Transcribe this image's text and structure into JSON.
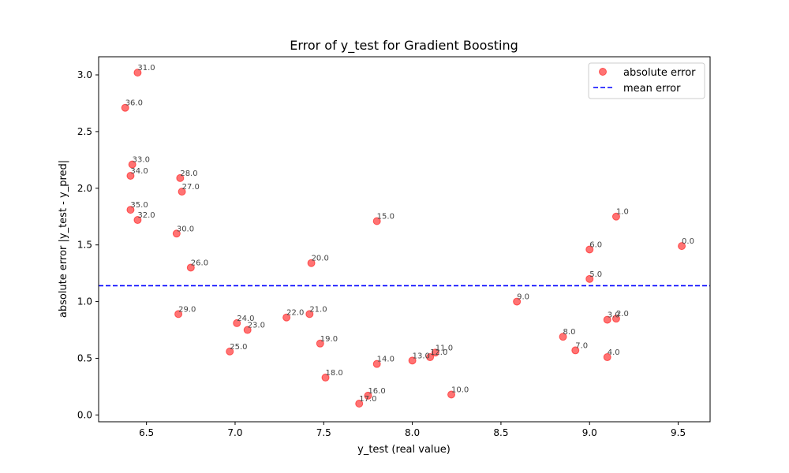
{
  "chart_data": {
    "type": "scatter",
    "title": "Error of y_test for Gradient Boosting",
    "xlabel": "y_test (real value)",
    "ylabel": "absolute error |y_test - y_pred|",
    "xlim": [
      6.23,
      9.68
    ],
    "ylim": [
      -0.06,
      3.16
    ],
    "xticks": [
      "6.5",
      "7.0",
      "7.5",
      "8.0",
      "8.5",
      "9.0",
      "9.5"
    ],
    "yticks": [
      "0.0",
      "0.5",
      "1.0",
      "1.5",
      "2.0",
      "2.5",
      "3.0"
    ],
    "grid": false,
    "legend_position": "top-right",
    "mean_error": 1.14,
    "colors": {
      "points": "#ff0000",
      "mean_line": "#0000ff",
      "point_label": "#444444"
    },
    "series": [
      {
        "name": "absolute error",
        "points": [
          {
            "label": "0.0",
            "x": 9.52,
            "y": 1.49
          },
          {
            "label": "1.0",
            "x": 9.15,
            "y": 1.75
          },
          {
            "label": "2.0",
            "x": 9.15,
            "y": 0.85
          },
          {
            "label": "3.0",
            "x": 9.1,
            "y": 0.84
          },
          {
            "label": "4.0",
            "x": 9.1,
            "y": 0.51
          },
          {
            "label": "5.0",
            "x": 9.0,
            "y": 1.2
          },
          {
            "label": "6.0",
            "x": 9.0,
            "y": 1.46
          },
          {
            "label": "7.0",
            "x": 8.92,
            "y": 0.57
          },
          {
            "label": "8.0",
            "x": 8.85,
            "y": 0.69
          },
          {
            "label": "9.0",
            "x": 8.59,
            "y": 1.0
          },
          {
            "label": "10.0",
            "x": 8.22,
            "y": 0.18
          },
          {
            "label": "11.0",
            "x": 8.13,
            "y": 0.55
          },
          {
            "label": "12.0",
            "x": 8.1,
            "y": 0.51
          },
          {
            "label": "13.0",
            "x": 8.0,
            "y": 0.48
          },
          {
            "label": "14.0",
            "x": 7.8,
            "y": 0.45
          },
          {
            "label": "15.0",
            "x": 7.8,
            "y": 1.71
          },
          {
            "label": "16.0",
            "x": 7.75,
            "y": 0.17
          },
          {
            "label": "17.0",
            "x": 7.7,
            "y": 0.1
          },
          {
            "label": "18.0",
            "x": 7.51,
            "y": 0.33
          },
          {
            "label": "19.0",
            "x": 7.48,
            "y": 0.63
          },
          {
            "label": "20.0",
            "x": 7.43,
            "y": 1.34
          },
          {
            "label": "21.0",
            "x": 7.42,
            "y": 0.89
          },
          {
            "label": "22.0",
            "x": 7.29,
            "y": 0.86
          },
          {
            "label": "23.0",
            "x": 7.07,
            "y": 0.75
          },
          {
            "label": "24.0",
            "x": 7.01,
            "y": 0.81
          },
          {
            "label": "25.0",
            "x": 6.97,
            "y": 0.56
          },
          {
            "label": "26.0",
            "x": 6.75,
            "y": 1.3
          },
          {
            "label": "27.0",
            "x": 6.7,
            "y": 1.97
          },
          {
            "label": "28.0",
            "x": 6.69,
            "y": 2.09
          },
          {
            "label": "29.0",
            "x": 6.68,
            "y": 0.89
          },
          {
            "label": "30.0",
            "x": 6.67,
            "y": 1.6
          },
          {
            "label": "31.0",
            "x": 6.45,
            "y": 3.02
          },
          {
            "label": "32.0",
            "x": 6.45,
            "y": 1.72
          },
          {
            "label": "33.0",
            "x": 6.42,
            "y": 2.21
          },
          {
            "label": "34.0",
            "x": 6.41,
            "y": 2.11
          },
          {
            "label": "35.0",
            "x": 6.41,
            "y": 1.81
          },
          {
            "label": "36.0",
            "x": 6.38,
            "y": 2.71
          }
        ]
      },
      {
        "name": "mean error"
      }
    ]
  }
}
